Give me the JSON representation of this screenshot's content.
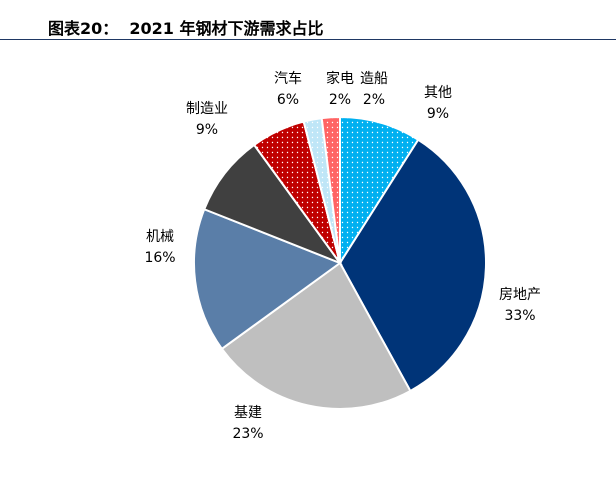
{
  "header": {
    "title": "图表20：  2021 年钢材下游需求占比"
  },
  "chart_data": {
    "type": "pie",
    "title": "2021 年钢材下游需求占比",
    "legend": "none",
    "slices": [
      {
        "name": "其他",
        "value": 9,
        "label": "9%",
        "color": "#00b0f0",
        "pattern": "dots"
      },
      {
        "name": "房地产",
        "value": 33,
        "label": "33%",
        "color": "#003478",
        "pattern": "solid"
      },
      {
        "name": "基建",
        "value": 23,
        "label": "23%",
        "color": "#bfbfbf",
        "pattern": "solid"
      },
      {
        "name": "机械",
        "value": 16,
        "label": "16%",
        "color": "#5a7ea8",
        "pattern": "solid"
      },
      {
        "name": "制造业",
        "value": 9,
        "label": "9%",
        "color": "#404040",
        "pattern": "solid"
      },
      {
        "name": "汽车",
        "value": 6,
        "label": "6%",
        "color": "#c00000",
        "pattern": "dots"
      },
      {
        "name": "家电",
        "value": 2,
        "label": "2%",
        "color": "#bfe6f7",
        "pattern": "dots"
      },
      {
        "name": "造船",
        "value": 2,
        "label": "2%",
        "color": "#ff6464",
        "pattern": "dots"
      }
    ]
  }
}
